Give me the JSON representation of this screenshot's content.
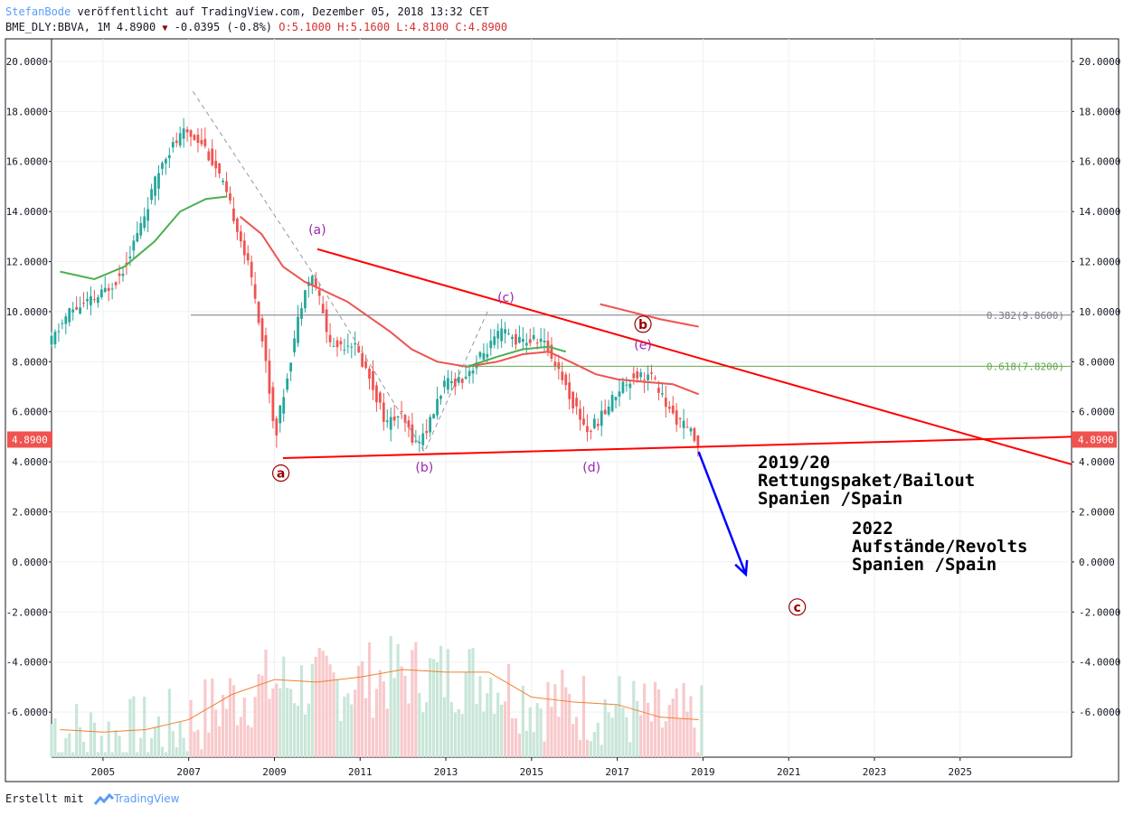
{
  "header": {
    "author": "StefanBode",
    "published": " veröffentlicht auf TradingView.com, Dezember 05, 2018 13:32 CET",
    "symbol_line": "BME_DLY:BBVA, 1M 4.8900",
    "change": " -0.0395 (-0.8%) ",
    "ohlc": "O:5.1000 H:5.1600 L:4.8100 C:4.8900"
  },
  "footer": {
    "made_with": "Erstellt mit",
    "brand": "TradingView",
    "logo_icon": "tradingview-logo-icon"
  },
  "colors": {
    "up": "#26a69a",
    "down": "#ef5350",
    "trend": "#ff0000",
    "ma_green": "#4caf50",
    "ma_red": "#ef5350",
    "purple": "#9c27b0",
    "darkred": "#9b0000",
    "arrow": "#0000ff",
    "fib382": "#787b86",
    "fib618": "#66a84c",
    "vol_ma": "#f08030"
  },
  "chart_data": {
    "type": "candlestick",
    "y_range": [
      -7.8,
      20.9
    ],
    "x_range": [
      2003.8,
      2027.6
    ],
    "grid": true,
    "y_ticks": [
      "20.0000",
      "18.0000",
      "16.0000",
      "14.0000",
      "12.0000",
      "10.0000",
      "8.0000",
      "6.0000",
      "4.0000",
      "2.0000",
      "0.0000",
      "-2.0000",
      "-4.0000",
      "-6.0000"
    ],
    "x_ticks": [
      "2005",
      "2007",
      "2009",
      "2011",
      "2013",
      "2015",
      "2017",
      "2019",
      "2021",
      "2023",
      "2025"
    ],
    "last_price_label": "4.8900",
    "anchors": [
      [
        2003.8,
        8.6
      ],
      [
        2004.3,
        10.0
      ],
      [
        2005.0,
        10.6
      ],
      [
        2005.5,
        11.5
      ],
      [
        2006.0,
        13.6
      ],
      [
        2006.5,
        16.2
      ],
      [
        2007.0,
        17.2
      ],
      [
        2007.4,
        16.8
      ],
      [
        2007.8,
        15.4
      ],
      [
        2008.2,
        13.5
      ],
      [
        2008.6,
        11.0
      ],
      [
        2008.9,
        7.8
      ],
      [
        2009.1,
        5.0
      ],
      [
        2009.5,
        8.5
      ],
      [
        2009.8,
        11.1
      ],
      [
        2010.0,
        11.4
      ],
      [
        2010.4,
        8.6
      ],
      [
        2010.9,
        8.8
      ],
      [
        2011.3,
        7.4
      ],
      [
        2011.7,
        5.5
      ],
      [
        2012.0,
        5.9
      ],
      [
        2012.4,
        4.7
      ],
      [
        2012.7,
        5.5
      ],
      [
        2013.0,
        7.0
      ],
      [
        2013.5,
        7.4
      ],
      [
        2014.0,
        8.4
      ],
      [
        2014.4,
        9.2
      ],
      [
        2014.8,
        8.8
      ],
      [
        2015.3,
        8.9
      ],
      [
        2015.7,
        7.8
      ],
      [
        2016.0,
        6.5
      ],
      [
        2016.4,
        5.2
      ],
      [
        2016.8,
        6.0
      ],
      [
        2017.1,
        6.9
      ],
      [
        2017.5,
        7.5
      ],
      [
        2017.9,
        7.4
      ],
      [
        2018.3,
        6.0
      ],
      [
        2018.6,
        5.5
      ],
      [
        2018.93,
        4.89
      ]
    ],
    "ma_green": [
      [
        2004.0,
        11.6
      ],
      [
        2004.8,
        11.3
      ],
      [
        2005.5,
        11.8
      ],
      [
        2006.2,
        12.8
      ],
      [
        2006.8,
        14.0
      ],
      [
        2007.4,
        14.5
      ],
      [
        2007.9,
        14.6
      ]
    ],
    "ma_red_main": [
      [
        2008.2,
        13.8
      ],
      [
        2008.7,
        13.1
      ],
      [
        2009.2,
        11.8
      ],
      [
        2009.7,
        11.2
      ],
      [
        2010.2,
        10.8
      ],
      [
        2010.7,
        10.4
      ],
      [
        2011.2,
        9.8
      ],
      [
        2011.7,
        9.2
      ],
      [
        2012.2,
        8.5
      ],
      [
        2012.8,
        8.0
      ],
      [
        2013.5,
        7.8
      ],
      [
        2014.2,
        8.0
      ],
      [
        2014.8,
        8.3
      ],
      [
        2015.4,
        8.4
      ],
      [
        2015.9,
        8.0
      ],
      [
        2016.5,
        7.5
      ],
      [
        2017.0,
        7.3
      ],
      [
        2017.6,
        7.2
      ],
      [
        2018.3,
        7.1
      ],
      [
        2018.9,
        6.7
      ]
    ],
    "ma_green_mid": [
      [
        2013.5,
        7.8
      ],
      [
        2014.2,
        8.2
      ],
      [
        2014.8,
        8.5
      ],
      [
        2015.4,
        8.6
      ],
      [
        2015.8,
        8.4
      ]
    ],
    "ma_red_upper": [
      [
        2016.6,
        10.3
      ],
      [
        2017.3,
        10.0
      ],
      [
        2018.0,
        9.7
      ],
      [
        2018.9,
        9.4
      ]
    ],
    "dashed_wave": [
      [
        2007.1,
        18.8
      ],
      [
        2010.1,
        11.0
      ],
      [
        2012.5,
        4.4
      ],
      [
        2014.0,
        10.1
      ]
    ],
    "trendlines": {
      "upper": [
        [
          2010.0,
          12.5
        ],
        [
          2027.6,
          3.9
        ]
      ],
      "lower": [
        [
          2009.2,
          4.15
        ],
        [
          2027.6,
          5.0
        ]
      ]
    },
    "fib_levels": [
      {
        "label": "0.382(9.8600)",
        "value": 9.86,
        "from": 2007.05
      },
      {
        "label": "0.618(7.8200)",
        "value": 7.82,
        "from": 2013.3
      }
    ],
    "wave_labels_purple": [
      {
        "text": "(a)",
        "x": 2010.0,
        "y": 13.1
      },
      {
        "text": "(c)",
        "x": 2014.4,
        "y": 10.4
      },
      {
        "text": "(b)",
        "x": 2012.5,
        "y": 3.6
      },
      {
        "text": "(d)",
        "x": 2016.4,
        "y": 3.6
      },
      {
        "text": "(e)",
        "x": 2017.6,
        "y": 8.5
      }
    ],
    "wave_labels_circled": [
      {
        "text": "a",
        "x": 2009.15,
        "y": 3.55
      },
      {
        "text": "b",
        "x": 2017.6,
        "y": 9.5
      },
      {
        "text": "c",
        "x": 2021.2,
        "y": -1.8
      }
    ],
    "arrow": {
      "from": [
        2018.9,
        4.4
      ],
      "to": [
        2020.0,
        -0.5
      ]
    },
    "volume_ma": [
      [
        2004.0,
        -6.7
      ],
      [
        2005.0,
        -6.8
      ],
      [
        2006.0,
        -6.7
      ],
      [
        2007.0,
        -6.3
      ],
      [
        2008.0,
        -5.3
      ],
      [
        2009.0,
        -4.7
      ],
      [
        2010.0,
        -4.8
      ],
      [
        2011.0,
        -4.6
      ],
      [
        2012.0,
        -4.3
      ],
      [
        2013.0,
        -4.4
      ],
      [
        2014.0,
        -4.4
      ],
      [
        2015.0,
        -5.4
      ],
      [
        2016.0,
        -5.6
      ],
      [
        2017.0,
        -5.7
      ],
      [
        2018.0,
        -6.2
      ],
      [
        2018.9,
        -6.3
      ]
    ]
  },
  "annotations": {
    "note1": [
      "2019/20",
      "Rettungspaket/Bailout",
      "Spanien         /Spain"
    ],
    "note2": [
      "2022",
      "Aufstände/Revolts",
      "Spanien   /Spain"
    ]
  }
}
